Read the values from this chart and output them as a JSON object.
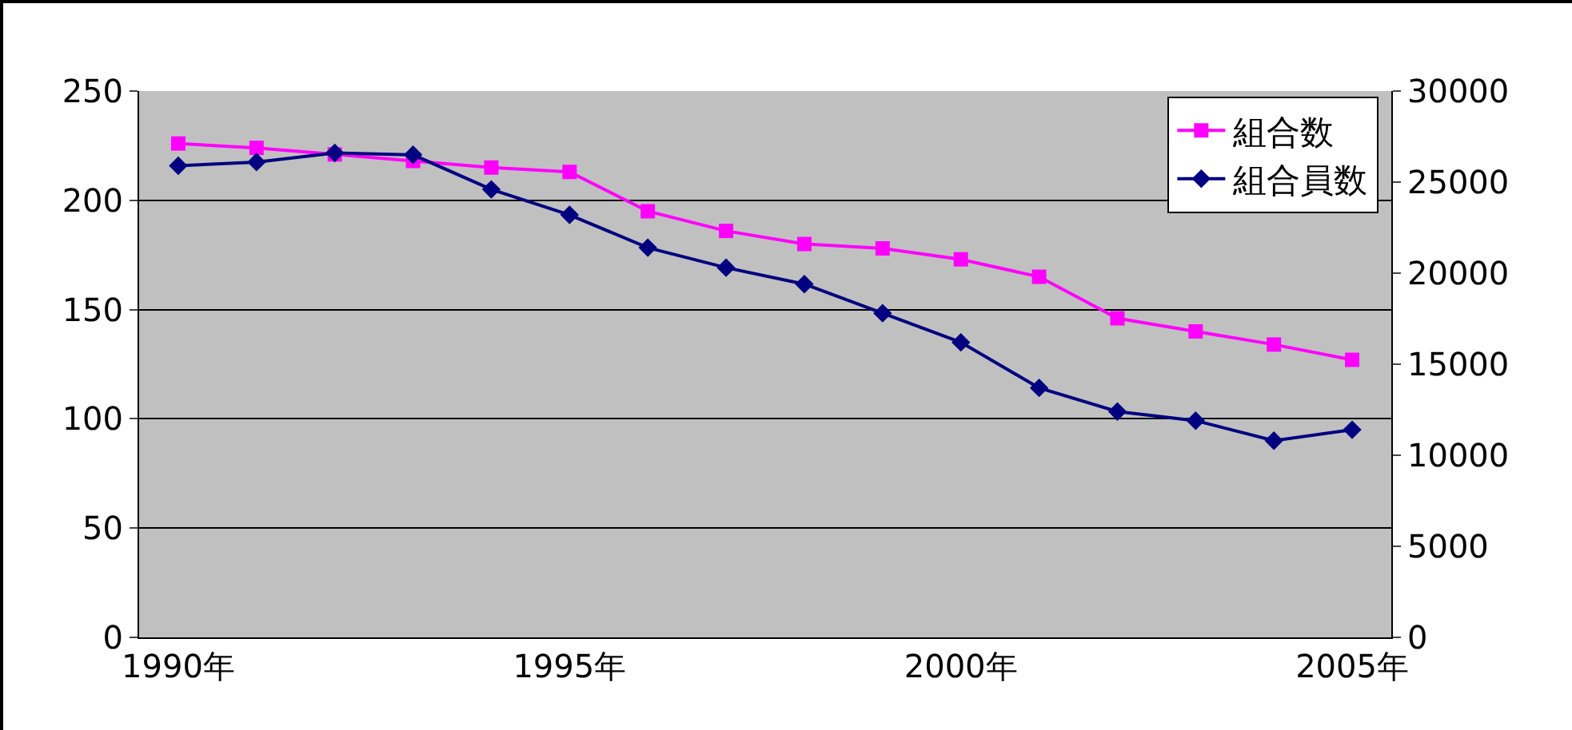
{
  "chart_data": {
    "type": "line",
    "categories": [
      "1990年",
      null,
      null,
      null,
      null,
      "1995年",
      null,
      null,
      null,
      null,
      "2000年",
      null,
      null,
      null,
      null,
      "2005年"
    ],
    "series": [
      {
        "name": "組合数",
        "color": "#ff00ff",
        "marker": "square",
        "values": [
          226,
          224,
          221,
          218,
          215,
          213,
          195,
          186,
          180,
          178,
          173,
          165,
          146,
          140,
          134,
          127
        ]
      },
      {
        "name": "組合員数",
        "color": "#000080",
        "marker": "diamond",
        "axis": "y2",
        "values": [
          25900,
          26100,
          26600,
          26500,
          24600,
          23200,
          21400,
          20300,
          19400,
          17800,
          16200,
          13700,
          12400,
          11900,
          10800,
          11400
        ]
      }
    ],
    "ylim": [
      0,
      250
    ],
    "yticks": [
      0,
      50,
      100,
      150,
      200,
      250
    ],
    "y2lim": [
      0,
      30000
    ],
    "y2ticks": [
      0,
      5000,
      10000,
      15000,
      20000,
      25000,
      30000
    ],
    "grid": "y",
    "legend": "top right",
    "line_style": "solid"
  }
}
